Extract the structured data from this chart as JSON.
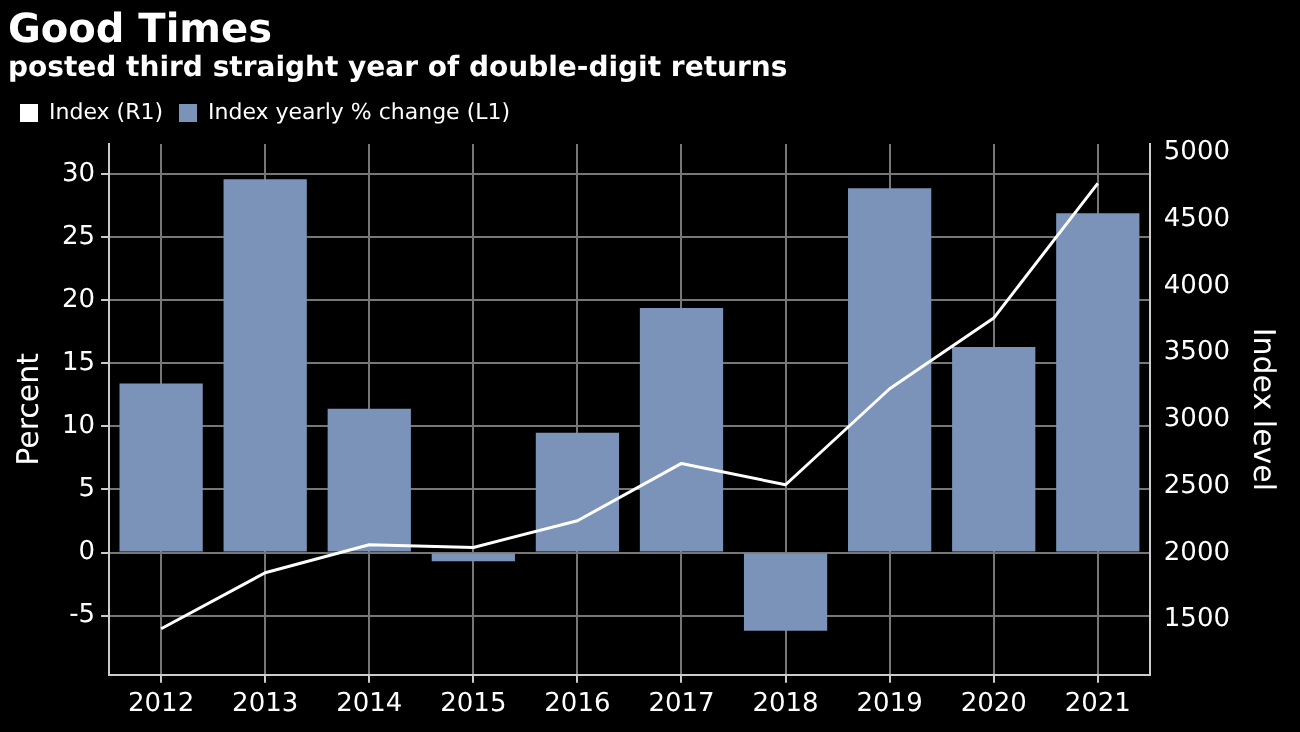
{
  "chart_data": {
    "type": "bar",
    "title": "Good Times",
    "subtitle": "posted third straight year of double-digit returns",
    "categories": [
      "2012",
      "2013",
      "2014",
      "2015",
      "2016",
      "2017",
      "2018",
      "2019",
      "2020",
      "2021"
    ],
    "series": [
      {
        "name": "Index (R1)",
        "type": "line",
        "axis": "y2",
        "color": "#ffffff",
        "values": [
          1430,
          1850,
          2060,
          2040,
          2240,
          2670,
          2510,
          3230,
          3760,
          4770
        ]
      },
      {
        "name": "Index yearly % change (L1)",
        "color": "#7b93b8",
        "values": [
          13.4,
          29.6,
          11.4,
          -0.7,
          9.5,
          19.4,
          -6.2,
          28.9,
          16.3,
          26.9
        ]
      }
    ],
    "ylabel": "Percent",
    "y2label": "Index level",
    "ylim": [
      -9.7,
      32.4
    ],
    "yticks": [
      -5,
      0,
      5,
      10,
      15,
      20,
      25,
      30
    ],
    "y2lim": [
      1085,
      5065
    ],
    "y2ticks": [
      1500,
      2000,
      2500,
      3000,
      3500,
      4000,
      4500,
      5000
    ],
    "grid": true,
    "legend": "top left",
    "marker": "none"
  }
}
